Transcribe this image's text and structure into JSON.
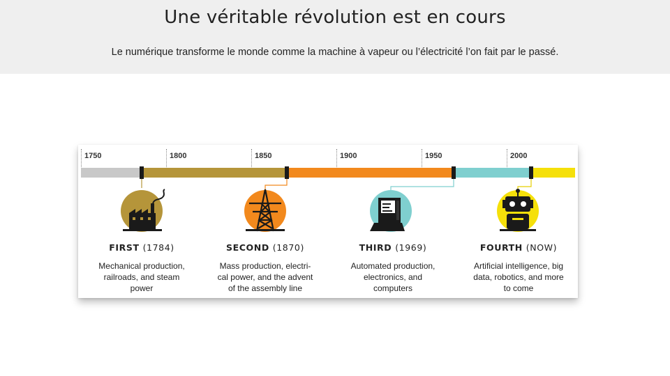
{
  "header": {
    "title": "Une véritable révolution est en cours",
    "subtitle": "Le numérique transforme le monde comme la machine à vapeur ou l’électricité l’on fait par le passé."
  },
  "timeline": {
    "years": [
      "1750",
      "1800",
      "1850",
      "1900",
      "1950",
      "2000"
    ],
    "segment_colors": [
      "#c8c8c8",
      "#b5953a",
      "#f2891d",
      "#7fcfcf",
      "#f5e00a"
    ],
    "eras": [
      {
        "name": "FIRST",
        "year": "(1784)",
        "desc_lines": [
          "Mechanical production,",
          "railroads, and steam",
          "power"
        ],
        "icon": "factory-icon"
      },
      {
        "name": "SECOND",
        "year": "(1870)",
        "desc_lines": [
          "Mass production, electri-",
          "cal power, and the advent",
          "of the assembly line"
        ],
        "icon": "power-pylon-icon"
      },
      {
        "name": "THIRD",
        "year": "(1969)",
        "desc_lines": [
          "Automated production,",
          "electronics, and",
          "computers"
        ],
        "icon": "computer-icon"
      },
      {
        "name": "FOURTH",
        "year": "(NOW)",
        "desc_lines": [
          "Artificial intelligence, big",
          "data, robotics, and more",
          "to come"
        ],
        "icon": "robot-icon"
      }
    ]
  }
}
